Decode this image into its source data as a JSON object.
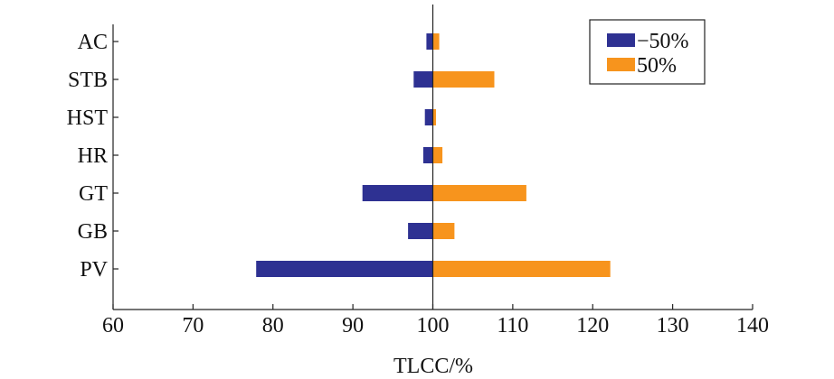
{
  "chart_data": {
    "type": "bar",
    "orientation": "horizontal",
    "xlabel": "TLCC/%",
    "ylabel": "",
    "title": "",
    "xlim": [
      60,
      140
    ],
    "xticks": [
      60,
      70,
      80,
      90,
      100,
      110,
      120,
      130,
      140
    ],
    "baseline": 100,
    "grid": false,
    "legend_position": "top-right",
    "categories": [
      "AC",
      "STB",
      "HST",
      "HR",
      "GT",
      "GB",
      "PV"
    ],
    "series": [
      {
        "name": "−50%",
        "color": "#2e3192",
        "values": [
          99.2,
          97.6,
          99.0,
          98.8,
          91.2,
          96.9,
          77.9
        ]
      },
      {
        "name": "50%",
        "color": "#f7941d",
        "values": [
          100.8,
          107.7,
          100.4,
          101.2,
          111.7,
          102.7,
          122.2
        ]
      }
    ]
  }
}
